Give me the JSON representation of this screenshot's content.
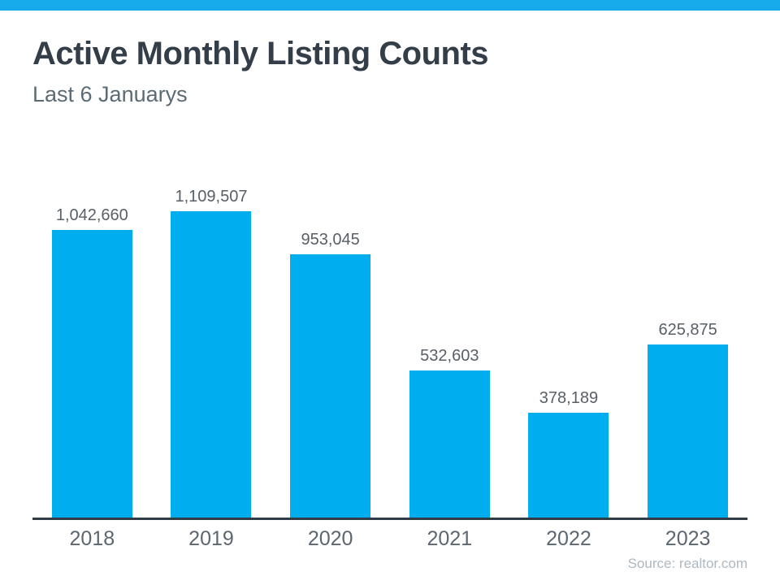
{
  "header": {
    "title": "Active Monthly Listing Counts",
    "subtitle": "Last 6 Januarys"
  },
  "chart_data": {
    "type": "bar",
    "title": "Active Monthly Listing Counts",
    "subtitle": "Last 6 Januarys",
    "categories": [
      "2018",
      "2019",
      "2020",
      "2021",
      "2022",
      "2023"
    ],
    "values": [
      1042660,
      1109507,
      953045,
      532603,
      378189,
      625875
    ],
    "value_labels": [
      "1,042,660",
      "1,109,507",
      "953,045",
      "532,603",
      "378,189",
      "625,875"
    ],
    "xlabel": "",
    "ylabel": "",
    "ylim": [
      0,
      1109507
    ],
    "grid": false,
    "legend": false,
    "bar_color": "#00AEEF"
  },
  "footer": {
    "source": "Source: realtor.com"
  },
  "colors": {
    "accent_bar": "#17ABEB",
    "bar": "#00AEEF",
    "title": "#333E48",
    "subtitle": "#5B6B75",
    "axis": "#2F3B45",
    "value_label": "#595F66",
    "tick": "#5C6670",
    "source": "#AEB8C0"
  }
}
